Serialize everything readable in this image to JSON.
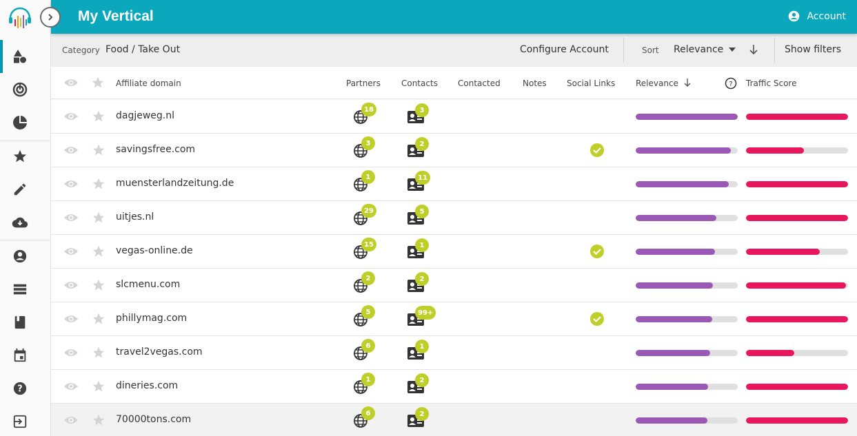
{
  "app": {
    "title": "My Vertical",
    "account_label": "Account"
  },
  "toolbar": {
    "category_label": "Category",
    "category_value": "Food / Take Out",
    "configure_label": "Configure Account",
    "sort_label": "Sort",
    "sort_value": "Relevance",
    "show_filters_label": "Show filters"
  },
  "table": {
    "headers": {
      "domain": "Affiliate domain",
      "partners": "Partners",
      "contacts": "Contacts",
      "contacted": "Contacted",
      "notes": "Notes",
      "social": "Social Links",
      "relevance": "Relevance",
      "traffic": "Traffic Score"
    },
    "rows": [
      {
        "domain": "dagjeweg.nl",
        "partners": "18",
        "contacts": "3",
        "social": false,
        "relevance": 1.0,
        "traffic": 1.0
      },
      {
        "domain": "savingsfree.com",
        "partners": "3",
        "contacts": "2",
        "social": true,
        "relevance": 0.93,
        "traffic": 0.57
      },
      {
        "domain": "muensterlandzeitung.de",
        "partners": "1",
        "contacts": "11",
        "social": false,
        "relevance": 0.91,
        "traffic": 1.0
      },
      {
        "domain": "uitjes.nl",
        "partners": "29",
        "contacts": "5",
        "social": false,
        "relevance": 0.79,
        "traffic": 1.0
      },
      {
        "domain": "vegas-online.de",
        "partners": "15",
        "contacts": "1",
        "social": true,
        "relevance": 0.78,
        "traffic": 0.72
      },
      {
        "domain": "slcmenu.com",
        "partners": "2",
        "contacts": "2",
        "social": false,
        "relevance": 0.76,
        "traffic": 0.98
      },
      {
        "domain": "phillymag.com",
        "partners": "5",
        "contacts": "99+",
        "social": true,
        "relevance": 0.75,
        "traffic": 1.0
      },
      {
        "domain": "travel2vegas.com",
        "partners": "6",
        "contacts": "1",
        "social": false,
        "relevance": 0.73,
        "traffic": 0.47
      },
      {
        "domain": "dineries.com",
        "partners": "1",
        "contacts": "2",
        "social": false,
        "relevance": 0.71,
        "traffic": 1.0
      },
      {
        "domain": "70000tons.com",
        "partners": "6",
        "contacts": "2",
        "social": false,
        "relevance": 0.7,
        "traffic": 1.0
      }
    ]
  },
  "icons": {
    "rail": [
      "shapes-icon",
      "target-icon",
      "pie-chart-icon",
      "star-icon",
      "pencil-icon",
      "cloud-download-icon",
      "account-circle-icon",
      "list-icon",
      "book-icon",
      "calendar-icon",
      "help-icon",
      "logout-icon"
    ]
  },
  "colors": {
    "brand": "#0aa7bd",
    "relevance": "#9b59b6",
    "traffic": "#e8175d",
    "badge": "#bfcf2a",
    "social_check": "#bfcf2a"
  }
}
